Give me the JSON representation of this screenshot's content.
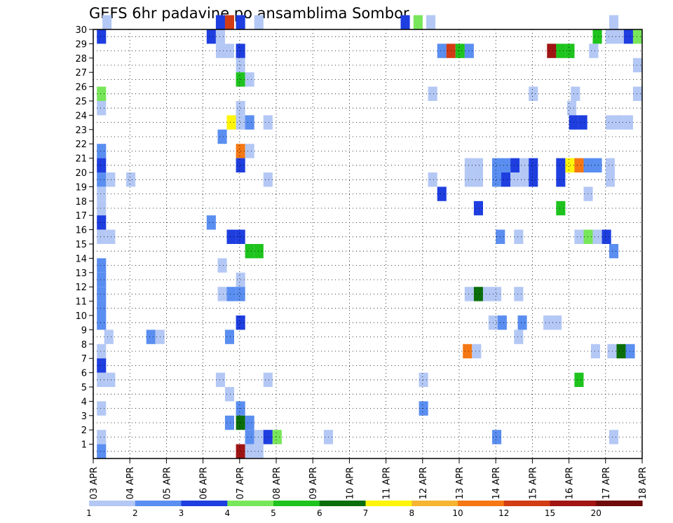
{
  "chart_data": {
    "type": "heatmap",
    "title": "GEFS 6hr padavine po ansamblima Sombor",
    "xlabel": "",
    "ylabel": "",
    "x_tick_labels": [
      "03 APR",
      "04 APR",
      "05 APR",
      "06 APR",
      "07 APR",
      "08 APR",
      "09 APR",
      "10 APR",
      "11 APR",
      "12 APR",
      "13 APR",
      "14 APR",
      "15 APR",
      "16 APR",
      "17 APR",
      "18 APR"
    ],
    "y_tick_labels": [
      "1",
      "2",
      "3",
      "4",
      "5",
      "6",
      "7",
      "8",
      "9",
      "10",
      "11",
      "12",
      "13",
      "14",
      "15",
      "16",
      "17",
      "18",
      "19",
      "20",
      "21",
      "22",
      "23",
      "24",
      "25",
      "26",
      "27",
      "28",
      "29",
      "30"
    ],
    "x_range_days": [
      0,
      15
    ],
    "y_range_members": [
      0,
      30
    ],
    "grid": "dotted",
    "colorbar": {
      "labels": [
        "1",
        "2",
        "3",
        "4",
        "5",
        "6",
        "7",
        "8",
        "10",
        "12",
        "15",
        "20"
      ],
      "colors": [
        "#b4c8f5",
        "#5a8ef0",
        "#1e3ee0",
        "#78e65a",
        "#1ec31e",
        "#0a6e0a",
        "#fff50a",
        "#f5b432",
        "#f57814",
        "#d23c14",
        "#a01414",
        "#6e0a0a"
      ]
    },
    "cell_value_class_note": "value = color class index (1..12)",
    "cells": [
      {
        "member": 30,
        "values": [
          [
            0.25,
            1
          ],
          [
            3.35,
            3
          ],
          [
            3.6,
            10
          ],
          [
            3.9,
            3
          ],
          [
            4.4,
            1
          ],
          [
            8.4,
            3
          ],
          [
            8.75,
            4
          ],
          [
            9.1,
            1
          ],
          [
            14.1,
            1
          ]
        ]
      },
      {
        "member": 29,
        "values": [
          [
            0.1,
            3
          ],
          [
            3.1,
            3
          ],
          [
            3.35,
            1
          ],
          [
            13.65,
            5
          ],
          [
            14.0,
            1
          ],
          [
            14.25,
            1
          ],
          [
            14.5,
            3
          ],
          [
            14.75,
            4
          ]
        ]
      },
      {
        "member": 28,
        "values": [
          [
            3.35,
            1
          ],
          [
            3.6,
            1
          ],
          [
            3.9,
            3
          ],
          [
            9.4,
            2
          ],
          [
            9.65,
            10
          ],
          [
            9.9,
            5
          ],
          [
            10.15,
            2
          ],
          [
            12.4,
            11
          ],
          [
            12.65,
            5
          ],
          [
            12.9,
            5
          ],
          [
            13.55,
            1
          ]
        ]
      },
      {
        "member": 27,
        "values": [
          [
            3.9,
            1
          ],
          [
            14.75,
            1
          ],
          [
            15.0,
            1
          ]
        ]
      },
      {
        "member": 26,
        "values": [
          [
            3.9,
            5
          ],
          [
            4.15,
            1
          ]
        ]
      },
      {
        "member": 25,
        "values": [
          [
            0.1,
            4
          ],
          [
            9.15,
            1
          ],
          [
            11.9,
            1
          ],
          [
            13.05,
            1
          ],
          [
            14.75,
            1
          ],
          [
            15.0,
            3
          ]
        ]
      },
      {
        "member": 24,
        "values": [
          [
            0.1,
            1
          ],
          [
            3.9,
            1
          ],
          [
            12.95,
            1
          ]
        ]
      },
      {
        "member": 23,
        "values": [
          [
            3.65,
            7
          ],
          [
            3.9,
            1
          ],
          [
            4.15,
            2
          ],
          [
            4.65,
            1
          ],
          [
            13.0,
            3
          ],
          [
            13.25,
            3
          ],
          [
            14.0,
            1
          ],
          [
            14.25,
            1
          ],
          [
            14.5,
            1
          ]
        ]
      },
      {
        "member": 22,
        "values": [
          [
            3.4,
            2
          ]
        ]
      },
      {
        "member": 21,
        "values": [
          [
            0.1,
            2
          ],
          [
            3.9,
            9
          ],
          [
            4.15,
            1
          ]
        ]
      },
      {
        "member": 20,
        "values": [
          [
            0.1,
            3
          ],
          [
            3.9,
            3
          ],
          [
            10.4,
            1
          ],
          [
            10.15,
            1
          ],
          [
            10.9,
            2
          ],
          [
            11.15,
            2
          ],
          [
            11.4,
            3
          ],
          [
            11.65,
            1
          ],
          [
            11.9,
            3
          ],
          [
            12.65,
            3
          ],
          [
            12.9,
            7
          ],
          [
            13.15,
            9
          ],
          [
            13.4,
            2
          ],
          [
            13.65,
            2
          ],
          [
            14.0,
            1
          ]
        ]
      },
      {
        "member": 19,
        "values": [
          [
            0.1,
            2
          ],
          [
            0.35,
            1
          ],
          [
            0.9,
            1
          ],
          [
            4.65,
            1
          ],
          [
            9.15,
            1
          ],
          [
            10.4,
            1
          ],
          [
            10.15,
            1
          ],
          [
            10.9,
            2
          ],
          [
            11.15,
            3
          ],
          [
            11.4,
            1
          ],
          [
            11.65,
            1
          ],
          [
            11.9,
            3
          ],
          [
            12.65,
            3
          ],
          [
            14.0,
            1
          ]
        ]
      },
      {
        "member": 18,
        "values": [
          [
            0.1,
            1
          ],
          [
            9.4,
            3
          ],
          [
            13.4,
            1
          ]
        ]
      },
      {
        "member": 17,
        "values": [
          [
            0.1,
            1
          ],
          [
            10.4,
            3
          ],
          [
            12.65,
            5
          ]
        ]
      },
      {
        "member": 16,
        "values": [
          [
            0.1,
            3
          ],
          [
            3.1,
            2
          ]
        ]
      },
      {
        "member": 15,
        "values": [
          [
            0.1,
            1
          ],
          [
            0.35,
            1
          ],
          [
            3.65,
            3
          ],
          [
            3.9,
            3
          ],
          [
            11.0,
            2
          ],
          [
            11.5,
            1
          ],
          [
            13.15,
            1
          ],
          [
            13.4,
            4
          ],
          [
            13.65,
            1
          ],
          [
            13.9,
            3
          ]
        ]
      },
      {
        "member": 14,
        "values": [
          [
            4.15,
            5
          ],
          [
            4.4,
            5
          ],
          [
            14.1,
            2
          ]
        ]
      },
      {
        "member": 13,
        "values": [
          [
            0.1,
            2
          ],
          [
            3.4,
            1
          ]
        ]
      },
      {
        "member": 12,
        "values": [
          [
            0.1,
            2
          ],
          [
            3.9,
            1
          ]
        ]
      },
      {
        "member": 11,
        "values": [
          [
            0.1,
            2
          ],
          [
            3.4,
            1
          ],
          [
            3.65,
            2
          ],
          [
            3.9,
            2
          ],
          [
            10.15,
            1
          ],
          [
            10.4,
            6
          ],
          [
            10.65,
            1
          ],
          [
            10.9,
            1
          ],
          [
            11.5,
            1
          ]
        ]
      },
      {
        "member": 10,
        "values": [
          [
            0.1,
            2
          ]
        ]
      },
      {
        "member": 9,
        "values": [
          [
            0.1,
            2
          ],
          [
            3.9,
            3
          ],
          [
            10.8,
            1
          ],
          [
            11.05,
            2
          ],
          [
            11.6,
            2
          ],
          [
            12.3,
            1
          ],
          [
            12.55,
            1
          ]
        ]
      },
      {
        "member": 8,
        "values": [
          [
            0.3,
            1
          ],
          [
            1.45,
            2
          ],
          [
            1.7,
            1
          ],
          [
            3.6,
            2
          ],
          [
            11.5,
            1
          ]
        ]
      },
      {
        "member": 7,
        "values": [
          [
            0.1,
            1
          ],
          [
            10.1,
            9
          ],
          [
            10.35,
            1
          ],
          [
            13.6,
            1
          ],
          [
            14.05,
            1
          ],
          [
            14.3,
            6
          ],
          [
            14.55,
            2
          ]
        ]
      },
      {
        "member": 6,
        "values": [
          [
            0.1,
            3
          ]
        ]
      },
      {
        "member": 5,
        "values": [
          [
            0.1,
            1
          ],
          [
            0.35,
            1
          ],
          [
            3.35,
            1
          ],
          [
            4.65,
            1
          ],
          [
            8.9,
            1
          ],
          [
            13.15,
            5
          ]
        ]
      },
      {
        "member": 4,
        "values": [
          [
            3.6,
            1
          ]
        ]
      },
      {
        "member": 3,
        "values": [
          [
            0.1,
            1
          ],
          [
            3.9,
            2
          ],
          [
            8.9,
            2
          ]
        ]
      },
      {
        "member": 2,
        "values": [
          [
            3.6,
            2
          ],
          [
            3.9,
            6
          ],
          [
            4.15,
            2
          ]
        ]
      },
      {
        "member": 1,
        "values": [
          [
            0.1,
            1
          ],
          [
            4.15,
            2
          ],
          [
            4.4,
            1
          ],
          [
            4.65,
            3
          ],
          [
            4.9,
            4
          ],
          [
            6.3,
            1
          ],
          [
            10.9,
            2
          ],
          [
            14.1,
            1
          ]
        ]
      },
      {
        "member": 0,
        "values": [
          [
            0.1,
            2
          ],
          [
            3.9,
            11
          ],
          [
            4.15,
            1
          ],
          [
            4.4,
            1
          ]
        ]
      }
    ]
  }
}
